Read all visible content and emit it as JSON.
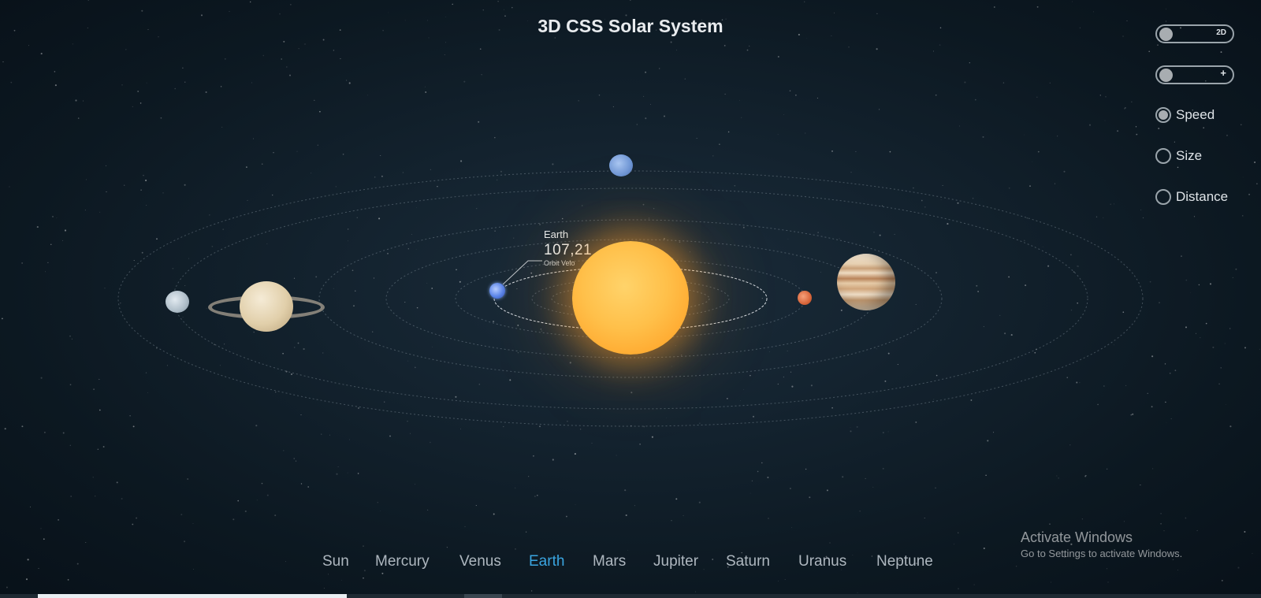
{
  "app": {
    "title": "3D CSS Solar System"
  },
  "controls": {
    "view_toggle_label": "2D",
    "zoom_toggle_label": "+",
    "scale_options": [
      {
        "label": "Speed",
        "checked": true
      },
      {
        "label": "Size",
        "checked": false
      },
      {
        "label": "Distance",
        "checked": false
      }
    ]
  },
  "selected_planet": {
    "name": "Earth",
    "value": "107,21",
    "caption": "Orbit Velo"
  },
  "nav": {
    "items": [
      "Sun",
      "Mercury",
      "Venus",
      "Earth",
      "Mars",
      "Jupiter",
      "Saturn",
      "Uranus",
      "Neptune"
    ],
    "active": "Earth"
  },
  "watermark": {
    "title": "Activate Windows",
    "subtitle": "Go to Settings to activate Windows."
  },
  "progress": {
    "fraction": 0.245
  },
  "colors": {
    "active_nav": "#3aa5e0",
    "background": "#0b1620",
    "sun": "#ffc04a"
  }
}
